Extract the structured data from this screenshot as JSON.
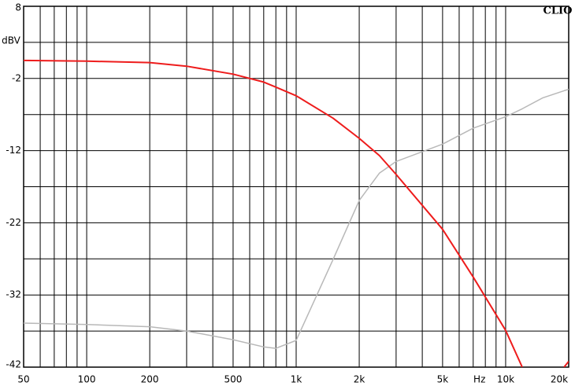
{
  "chart_data": {
    "type": "line",
    "brand": "CLIO",
    "y_label": "dBV",
    "x_unit": "Hz",
    "xscale": "log",
    "grid": true,
    "x": [
      50,
      100,
      200,
      300,
      500,
      700,
      800,
      1000,
      1500,
      2000,
      2500,
      3000,
      5000,
      7000,
      10000,
      12000,
      15000,
      19000,
      20000
    ],
    "series": [
      {
        "color": "#ee1c1c",
        "values": [
          0.5,
          0.4,
          0.2,
          -0.3,
          -1.4,
          -2.5,
          -3.2,
          -4.4,
          -7.5,
          -10.3,
          -12.7,
          -15.3,
          -22.9,
          -29.5,
          -36.9,
          -42,
          null,
          -42,
          -41.2
        ]
      },
      {
        "color": "#b8b8b8",
        "values": [
          -35.9,
          -36.1,
          -36.4,
          -37,
          -38.2,
          -39.2,
          -39.4,
          -38.3,
          -27.1,
          -18.9,
          -15.1,
          -13.5,
          -11.1,
          -8.9,
          -7.3,
          -6.2,
          -4.7,
          -3.7,
          -3.5
        ]
      }
    ],
    "xlim": [
      50,
      20000
    ],
    "xticks": [
      50,
      100,
      200,
      500,
      {
        "value": 1000,
        "label": "1k"
      },
      {
        "value": 2000,
        "label": "2k"
      },
      {
        "value": 5000,
        "label": "5k"
      },
      {
        "value": 10000,
        "label": "10k"
      },
      {
        "value": 20000,
        "label": "20k"
      }
    ],
    "xminor": [
      60,
      70,
      80,
      90,
      300,
      400,
      600,
      700,
      800,
      900,
      3000,
      4000,
      6000,
      7000,
      8000,
      9000
    ],
    "ylim": [
      -42,
      8
    ],
    "yticks": [
      8,
      -2,
      -12,
      -22,
      -32,
      -42
    ],
    "yminor": [
      3,
      -7,
      -17,
      -27,
      -37
    ]
  }
}
